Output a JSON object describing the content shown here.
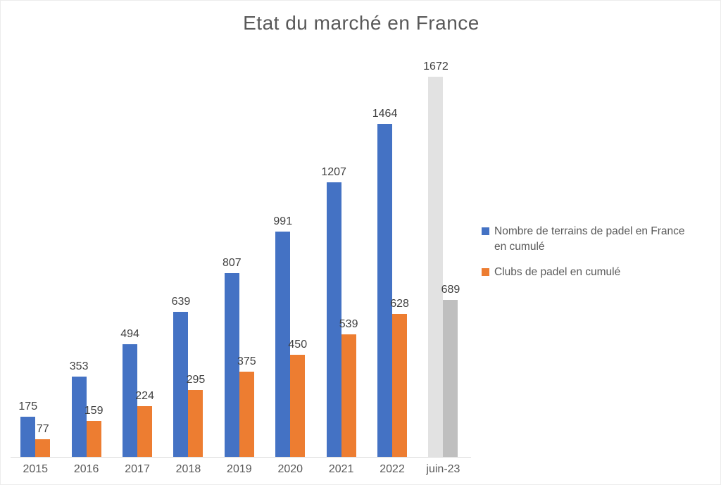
{
  "title": "Etat du marché en France",
  "chart_data": {
    "type": "bar",
    "title": "Etat du marché en France",
    "xlabel": "",
    "ylabel": "",
    "categories": [
      "2015",
      "2016",
      "2017",
      "2018",
      "2019",
      "2020",
      "2021",
      "2022",
      "juin-23"
    ],
    "series": [
      {
        "name": "Nombre de terrains de padel en France en cumulé",
        "color": "#4472C4",
        "values": [
          175,
          353,
          494,
          639,
          807,
          991,
          1207,
          1464,
          1672
        ]
      },
      {
        "name": "Clubs de padel en cumulé",
        "color": "#ED7D31",
        "values": [
          77,
          159,
          224,
          295,
          375,
          450,
          539,
          628,
          689
        ]
      }
    ],
    "highlight_last_category": true,
    "highlight_colors": [
      "#E2E2E2",
      "#BFBFBF"
    ],
    "data_labels": true,
    "grid": false,
    "legend_position": "right",
    "ylim": [
      0,
      1672
    ],
    "axis_line_color": "#D9D9D9",
    "label_color": "#404040",
    "axis_label_color": "#595959",
    "title_color": "#595959"
  }
}
